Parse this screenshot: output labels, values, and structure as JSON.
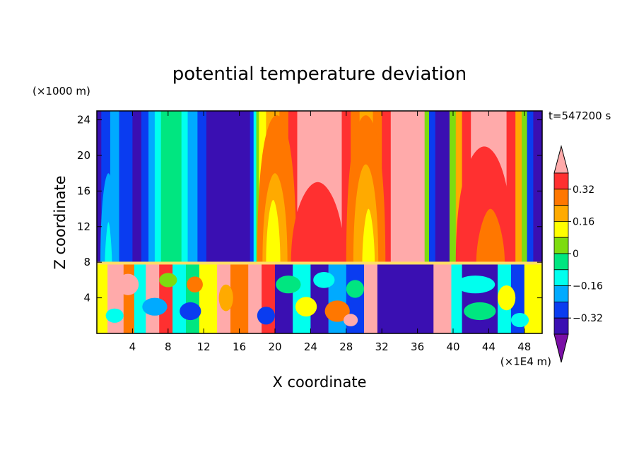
{
  "chart_data": {
    "type": "heatmap",
    "title": "potential temperature deviation",
    "xlabel": "X coordinate",
    "ylabel": "Z coordinate",
    "x_unit": "(×1E4 m)",
    "y_unit": "(×1000 m)",
    "time_label": "t=547200 s",
    "xlim": [
      0,
      50
    ],
    "ylim": [
      0,
      25
    ],
    "x_ticks": [
      4,
      8,
      12,
      16,
      20,
      24,
      28,
      32,
      36,
      40,
      44,
      48
    ],
    "y_ticks": [
      4,
      8,
      12,
      16,
      20,
      24
    ],
    "grid": false,
    "legend": "right colorbar",
    "colorbar": {
      "levels": [
        -0.48,
        -0.4,
        -0.32,
        -0.24,
        -0.16,
        -0.08,
        0,
        0.08,
        0.16,
        0.24,
        0.32,
        0.4
      ],
      "tick_values": [
        0.32,
        0.16,
        0,
        -0.16,
        -0.32
      ],
      "tick_labels": [
        "0.32",
        "0.16",
        "0",
        "−0.16",
        "−0.32"
      ],
      "colors": [
        "#7a0fa6",
        "#3a0fb2",
        "#0a3cf0",
        "#00aaff",
        "#00ffee",
        "#00e680",
        "#7ddc10",
        "#ffff00",
        "#ffaa00",
        "#ff7700",
        "#ff3030",
        "#ffaaaa"
      ]
    },
    "upper_columns": [
      {
        "x0": 0,
        "x1": 0.5,
        "value": -0.35
      },
      {
        "x0": 0.5,
        "x1": 1.5,
        "value": -0.28
      },
      {
        "x0": 1.5,
        "x1": 2.5,
        "value": -0.22
      },
      {
        "x0": 2.5,
        "x1": 4.0,
        "value": -0.3
      },
      {
        "x0": 4.0,
        "x1": 5.0,
        "value": -0.38
      },
      {
        "x0": 5.0,
        "x1": 5.8,
        "value": -0.3
      },
      {
        "x0": 5.8,
        "x1": 6.5,
        "value": -0.2
      },
      {
        "x0": 6.5,
        "x1": 7.2,
        "value": -0.12
      },
      {
        "x0": 7.2,
        "x1": 9.5,
        "value": -0.06
      },
      {
        "x0": 9.5,
        "x1": 10.2,
        "value": -0.12
      },
      {
        "x0": 10.2,
        "x1": 11.3,
        "value": -0.2
      },
      {
        "x0": 11.3,
        "x1": 12.3,
        "value": -0.3
      },
      {
        "x0": 12.3,
        "x1": 17.2,
        "value": -0.4
      },
      {
        "x0": 17.2,
        "x1": 17.6,
        "value": -0.3
      },
      {
        "x0": 17.6,
        "x1": 17.9,
        "value": -0.15
      },
      {
        "x0": 17.9,
        "x1": 18.2,
        "value": 0.02
      },
      {
        "x0": 18.2,
        "x1": 19.0,
        "value": 0.12
      },
      {
        "x0": 19.0,
        "x1": 20.5,
        "value": 0.2
      },
      {
        "x0": 20.5,
        "x1": 21.5,
        "value": 0.28
      },
      {
        "x0": 21.5,
        "x1": 22.5,
        "value": 0.36
      },
      {
        "x0": 22.5,
        "x1": 27.5,
        "value": 0.44
      },
      {
        "x0": 27.5,
        "x1": 28.5,
        "value": 0.36
      },
      {
        "x0": 28.5,
        "x1": 29.5,
        "value": 0.28
      },
      {
        "x0": 29.5,
        "x1": 31.0,
        "value": 0.2
      },
      {
        "x0": 31.0,
        "x1": 32.0,
        "value": 0.28
      },
      {
        "x0": 32.0,
        "x1": 33.0,
        "value": 0.36
      },
      {
        "x0": 33.0,
        "x1": 36.8,
        "value": 0.44
      },
      {
        "x0": 36.8,
        "x1": 37.3,
        "value": 0.05
      },
      {
        "x0": 37.3,
        "x1": 38.0,
        "value": -0.3
      },
      {
        "x0": 38.0,
        "x1": 39.6,
        "value": -0.4
      },
      {
        "x0": 39.6,
        "x1": 40.3,
        "value": 0.05
      },
      {
        "x0": 40.3,
        "x1": 41.0,
        "value": 0.2
      },
      {
        "x0": 41.0,
        "x1": 42.0,
        "value": 0.36
      },
      {
        "x0": 42.0,
        "x1": 46.0,
        "value": 0.44
      },
      {
        "x0": 46.0,
        "x1": 47.0,
        "value": 0.36
      },
      {
        "x0": 47.0,
        "x1": 47.7,
        "value": 0.2
      },
      {
        "x0": 47.7,
        "x1": 48.3,
        "value": 0.05
      },
      {
        "x0": 48.3,
        "x1": 49.0,
        "value": -0.3
      },
      {
        "x0": 49.0,
        "x1": 50.0,
        "value": -0.38
      }
    ],
    "lower_segments": [
      {
        "x0": 0,
        "x1": 1.2,
        "value": 0.1
      },
      {
        "x0": 1.2,
        "x1": 3.0,
        "value": 0.44
      },
      {
        "x0": 3.0,
        "x1": 4.2,
        "value": 0.28
      },
      {
        "x0": 4.2,
        "x1": 5.5,
        "value": -0.1
      },
      {
        "x0": 5.5,
        "x1": 7.0,
        "value": 0.44
      },
      {
        "x0": 7.0,
        "x1": 8.5,
        "value": 0.36
      },
      {
        "x0": 8.5,
        "x1": 10.0,
        "value": -0.16
      },
      {
        "x0": 10.0,
        "x1": 11.5,
        "value": -0.05
      },
      {
        "x0": 11.5,
        "x1": 13.5,
        "value": 0.1
      },
      {
        "x0": 13.5,
        "x1": 15.0,
        "value": 0.44
      },
      {
        "x0": 15.0,
        "x1": 17.0,
        "value": 0.3
      },
      {
        "x0": 17.0,
        "x1": 18.5,
        "value": 0.44
      },
      {
        "x0": 18.5,
        "x1": 20.0,
        "value": 0.36
      },
      {
        "x0": 20.0,
        "x1": 22.0,
        "value": -0.36
      },
      {
        "x0": 22.0,
        "x1": 24.0,
        "value": -0.12
      },
      {
        "x0": 24.0,
        "x1": 26.0,
        "value": -0.4
      },
      {
        "x0": 26.0,
        "x1": 28.0,
        "value": -0.2
      },
      {
        "x0": 28.0,
        "x1": 30.0,
        "value": -0.3
      },
      {
        "x0": 30.0,
        "x1": 31.5,
        "value": 0.44
      },
      {
        "x0": 31.5,
        "x1": 37.8,
        "value": -0.4
      },
      {
        "x0": 37.8,
        "x1": 39.8,
        "value": 0.44
      },
      {
        "x0": 39.8,
        "x1": 41.0,
        "value": -0.1
      },
      {
        "x0": 41.0,
        "x1": 45.0,
        "value": -0.4
      },
      {
        "x0": 45.0,
        "x1": 46.5,
        "value": -0.1
      },
      {
        "x0": 46.5,
        "x1": 48.0,
        "value": -0.3
      },
      {
        "x0": 48.0,
        "x1": 50.0,
        "value": 0.1
      }
    ]
  }
}
